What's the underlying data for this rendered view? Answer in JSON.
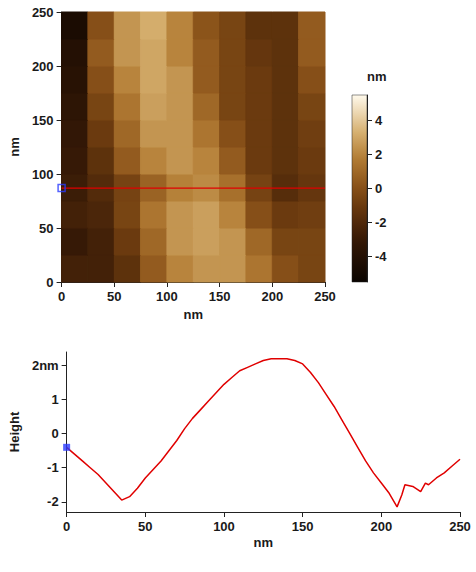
{
  "chart_data": [
    {
      "type": "heatmap",
      "xlabel": "nm",
      "ylabel": "nm",
      "xlim": [
        0,
        250
      ],
      "ylim": [
        0,
        250
      ],
      "xticks": [
        0,
        50,
        100,
        150,
        200,
        250
      ],
      "yticks": [
        0,
        50,
        100,
        150,
        200,
        250
      ],
      "x": [
        12.5,
        37.5,
        62.5,
        87.5,
        112.5,
        137.5,
        162.5,
        187.5,
        212.5,
        237.5
      ],
      "y": [
        12.5,
        37.5,
        62.5,
        87.5,
        112.5,
        137.5,
        162.5,
        187.5,
        212.5,
        237.5
      ],
      "cells": [
        [
          -2.5,
          -2.5,
          -1.5,
          0.5,
          2.0,
          2.5,
          2.5,
          1.5,
          0.0,
          -0.5
        ],
        [
          -3.0,
          -2.5,
          -1.0,
          1.0,
          2.5,
          2.8,
          2.5,
          1.0,
          -0.5,
          -0.5
        ],
        [
          -2.5,
          -2.2,
          -0.5,
          1.5,
          2.5,
          2.8,
          2.0,
          0.0,
          -1.0,
          -0.8
        ],
        [
          -2.8,
          -1.9,
          -0.6,
          0.8,
          1.9,
          2.2,
          1.3,
          -0.6,
          -1.8,
          -1.2
        ],
        [
          -3.0,
          -1.5,
          0.5,
          2.0,
          2.5,
          2.0,
          0.5,
          -1.0,
          -1.5,
          -1.0
        ],
        [
          -3.2,
          -1.0,
          1.0,
          2.5,
          2.5,
          1.5,
          0.0,
          -1.0,
          -1.5,
          -0.8
        ],
        [
          -3.5,
          -0.5,
          1.5,
          2.8,
          2.5,
          1.0,
          -0.5,
          -1.0,
          -1.5,
          -0.5
        ],
        [
          -3.8,
          0.0,
          2.0,
          3.0,
          2.5,
          0.5,
          -0.5,
          -1.0,
          -1.5,
          0.0
        ],
        [
          -4.0,
          0.5,
          2.5,
          3.0,
          2.0,
          0.5,
          -0.5,
          -1.2,
          -1.5,
          0.5
        ],
        [
          -4.5,
          0.0,
          2.5,
          3.2,
          2.0,
          0.2,
          -0.5,
          -1.5,
          -1.5,
          0.5
        ]
      ],
      "colorbar": {
        "title": "nm",
        "range": [
          -5.5,
          5.5
        ],
        "ticks": [
          -4,
          -2,
          0,
          2,
          4
        ]
      },
      "profile_line": {
        "x": [
          0,
          250
        ],
        "y": 87,
        "color": "#e00000"
      },
      "profile_start": {
        "x": 0,
        "y": 87,
        "color": "#2a3cff"
      }
    },
    {
      "type": "line",
      "xlabel": "nm",
      "ylabel": "Height",
      "xlim": [
        0,
        250
      ],
      "ylim": [
        -2.3,
        2.4
      ],
      "xticks": [
        0,
        50,
        100,
        150,
        200,
        250
      ],
      "yticks": [
        -2,
        -1,
        0,
        1,
        {
          "value": 2,
          "label": "2nm"
        }
      ],
      "color": "#e00000",
      "x": [
        0,
        5,
        10,
        15,
        20,
        25,
        30,
        35,
        40,
        45,
        50,
        55,
        60,
        65,
        70,
        75,
        80,
        85,
        90,
        95,
        100,
        105,
        110,
        115,
        120,
        125,
        130,
        135,
        140,
        145,
        150,
        155,
        160,
        165,
        170,
        175,
        180,
        185,
        190,
        195,
        200,
        205,
        210,
        213,
        215,
        220,
        225,
        228,
        230,
        235,
        240,
        245,
        250
      ],
      "values": [
        -0.4,
        -0.6,
        -0.8,
        -1.0,
        -1.2,
        -1.45,
        -1.7,
        -1.95,
        -1.85,
        -1.6,
        -1.3,
        -1.05,
        -0.8,
        -0.5,
        -0.2,
        0.15,
        0.45,
        0.7,
        0.95,
        1.2,
        1.45,
        1.65,
        1.85,
        1.95,
        2.05,
        2.15,
        2.2,
        2.2,
        2.2,
        2.15,
        2.05,
        1.8,
        1.5,
        1.15,
        0.8,
        0.4,
        0.0,
        -0.4,
        -0.8,
        -1.15,
        -1.45,
        -1.75,
        -2.15,
        -1.8,
        -1.5,
        -1.55,
        -1.7,
        -1.45,
        -1.5,
        -1.3,
        -1.15,
        -0.95,
        -0.75
      ],
      "start_point": {
        "x": 0,
        "y": -0.4,
        "color": "#2a3cff"
      }
    }
  ]
}
